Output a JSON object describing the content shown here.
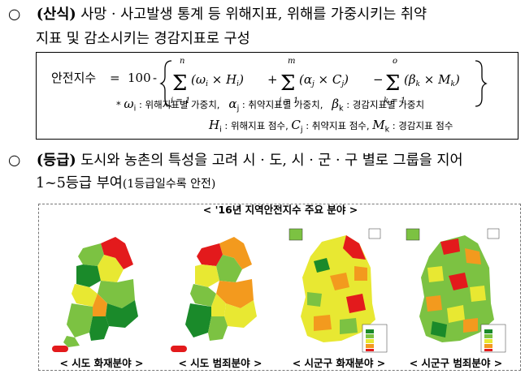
{
  "section1": {
    "bullet": "○",
    "head": "(산식)",
    "line1_rest": " 사망 · 사고발생 통계 등 위해지표, 위해를 가중시키는 취약",
    "line2": "지표 및 감소시키는 경감지표로 구성"
  },
  "formula": {
    "lhs": "안전지수",
    "eq": "=",
    "const": "100",
    "minus": "-",
    "sum1_upper": "n",
    "sum1_lower": "i = 1",
    "term1": "(ω",
    "term1_sub": "i",
    "term1_mid": " × H",
    "term1_sub2": "i",
    "term1_end": ")",
    "sum2_upper": "m",
    "sum2_lower": "j = 1",
    "term2": "(α",
    "term2_sub": "j",
    "term2_mid": " × C",
    "term2_sub2": "j",
    "term2_end": ")",
    "sum3_upper": "o",
    "sum3_lower": "k = 1",
    "term3": "(β",
    "term3_sub": "k",
    "term3_mid": " × M",
    "term3_sub2": "k",
    "term3_end": ")",
    "plus": "+",
    "minus2": "−"
  },
  "legend": {
    "star": "*",
    "w_sym": "ω",
    "w_sub": "i",
    "w_desc": ": 위해지표별 가중치,",
    "a_sym": "α",
    "a_sub": "j",
    "a_desc": ": 취약지표별 가중치,",
    "b_sym": "β",
    "b_sub": "k",
    "b_desc": ": 경감지표별 가중치",
    "h_sym": "H",
    "h_sub": "i",
    "h_desc": ": 위해지표 점수,",
    "c_sym": "C",
    "c_sub": "j",
    "c_desc": ": 취약지표 점수,",
    "m_sym": "M",
    "m_sub": "k",
    "m_desc": ": 경감지표 점수"
  },
  "section2": {
    "bullet": "○",
    "head": "(등급)",
    "line1_rest": " 도시와 농촌의 특성을 고려 시 · 도, 시 · 군 · 구 별로 그룹을 지어",
    "line2_main": "1~5등급 부여",
    "line2_small": "(1등급일수록 안전)"
  },
  "maps": {
    "title": "< '16년 지역안전지수 주요 분야 >",
    "captions": [
      "< 시도 화재분야 >",
      "< 시도 범죄분야 >",
      "< 시군구 화재분야 >",
      "< 시군구 범죄분야 >"
    ]
  },
  "colors": {
    "grade1": "#1a8a2a",
    "grade2": "#7cc242",
    "grade3": "#e8e832",
    "grade4": "#f39a1e",
    "grade5": "#e31a1c"
  }
}
